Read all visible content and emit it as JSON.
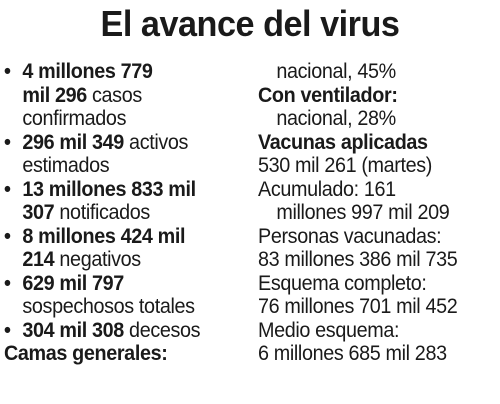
{
  "title": "El avance del virus",
  "left": {
    "items": [
      {
        "bold": "4 millones 779",
        "cont_bold": "mil 296",
        "cont_rest": " casos",
        "cont2": "confirmados"
      },
      {
        "bold": "296 mil 349",
        "rest": " activos",
        "cont": "estimados"
      },
      {
        "bold": "13 millones 833 mil",
        "cont_bold": "307",
        "cont_rest": " notificados"
      },
      {
        "bold": "8 millones 424 mil",
        "cont_bold": "214",
        "cont_rest": " negativos"
      },
      {
        "bold": "629 mil 797",
        "cont": "sospechosos totales"
      },
      {
        "bold": "304 mil 308",
        "rest": " decesos"
      }
    ],
    "bullet": "•",
    "camas_generales": "Camas generales:"
  },
  "right": {
    "line1": "nacional, 45%",
    "ventilador_heading": "Con ventilador:",
    "ventilador_value": "nacional, 28%",
    "vacunas_heading": "Vacunas aplicadas",
    "vacunas_daily": "530 mil 261 (martes)",
    "acumulado_label": "Acumulado: 161",
    "acumulado_cont": "millones 997 mil 209",
    "personas_label": "Personas vacunadas:",
    "personas_value": "83 millones 386 mil 735",
    "completo_label": "Esquema completo:",
    "completo_value": "76 millones 701 mil 452",
    "medio_label": "Medio esquema:",
    "medio_value": "6 millones 685 mil 283"
  }
}
